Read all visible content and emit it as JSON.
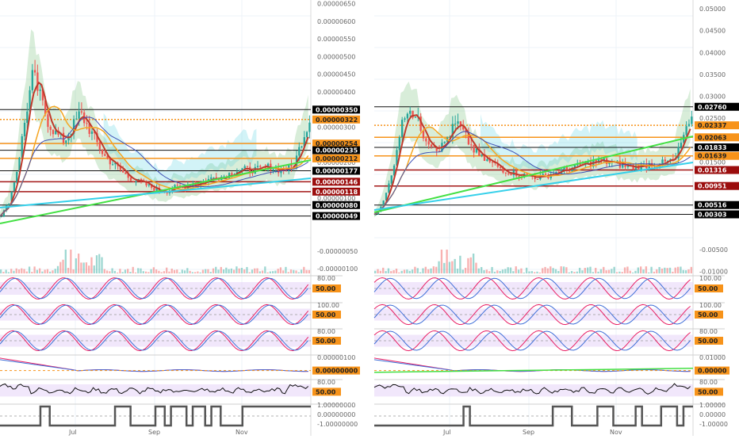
{
  "colors": {
    "background": "#ffffff",
    "grid": "#eef3f8",
    "price_up": "#26a69a",
    "price_down": "#ef5350",
    "ema_fast": "#c0392b",
    "ema_mid": "#f5a623",
    "ema_slow": "#3f51b5",
    "cloud": "#4caf50",
    "cyan_band": "#4dd0e1",
    "green_trend": "#44e044",
    "cyan_trend": "#35d0ea",
    "orange_line": "#f7931a",
    "darkred_line": "#a31515",
    "black_line": "#111111",
    "osc_band": "#e6d4f7",
    "osc_red": "#e91e63",
    "osc_blue": "#3f6fd8",
    "orange_tag": "#f7931a"
  },
  "x_axis": {
    "labels": [
      "Jul",
      "Sep",
      "Nov"
    ]
  },
  "left": {
    "price_axis": {
      "labels": [
        "0.00000650",
        "0.00000600",
        "0.00000550",
        "0.00000500",
        "0.00000450",
        "0.00000400",
        "0.00000300",
        "0.00000250",
        "0.00000200",
        "0.00000150",
        "0.00000100",
        "0.00000050",
        "-0.00000050",
        "-0.00000100"
      ]
    },
    "price_tags": [
      {
        "text": "0.00000350",
        "style": "black"
      },
      {
        "text": "0.00000322",
        "style": "orange"
      },
      {
        "text": "0.00000254",
        "style": "orange"
      },
      {
        "text": "0.00000235",
        "style": "black"
      },
      {
        "text": "0.00000212",
        "style": "orange"
      },
      {
        "text": "0.00000177",
        "style": "black"
      },
      {
        "text": "0.00000146",
        "style": "darkred"
      },
      {
        "text": "0.00000118",
        "style": "darkred"
      },
      {
        "text": "0.00000080",
        "style": "black"
      },
      {
        "text": "0.00000049",
        "style": "black"
      }
    ],
    "stoch1_axis": [
      "80.00"
    ],
    "stoch1_tag": "50.00",
    "stoch2_axis": [
      "100.00",
      "80.00"
    ],
    "stoch2_tag": "50.00",
    "stoch3_axis": [
      "80.00"
    ],
    "stoch3_tag": "50.00",
    "macd_axis": [
      "0.00000100"
    ],
    "macd_tag": "0.00000000",
    "rsi_axis": [
      "80.00"
    ],
    "rsi_tag": "50.00",
    "step_axis": [
      "1.00000000",
      "0.00000000",
      "-1.00000000"
    ]
  },
  "right": {
    "price_axis": {
      "labels": [
        "0.05000",
        "0.04500",
        "0.04000",
        "0.03500",
        "0.03000",
        "0.02500",
        "0.01500",
        "0.00500",
        "-0.00500",
        "-0.01000"
      ]
    },
    "price_tags": [
      {
        "text": "0.02760",
        "style": "black"
      },
      {
        "text": "0.02337",
        "style": "orange"
      },
      {
        "text": "0.02063",
        "style": "orange"
      },
      {
        "text": "0.01833",
        "style": "black"
      },
      {
        "text": "0.01639",
        "style": "orange"
      },
      {
        "text": "0.01316",
        "style": "darkred"
      },
      {
        "text": "0.00951",
        "style": "darkred"
      },
      {
        "text": "0.00516",
        "style": "black"
      },
      {
        "text": "0.00303",
        "style": "black"
      }
    ],
    "stoch1_axis": [
      "100.00"
    ],
    "stoch1_tag": "50.00",
    "stoch2_axis": [
      "100.00",
      "80.00"
    ],
    "stoch2_tag": "50.00",
    "stoch3_axis": [
      "80.00"
    ],
    "stoch3_tag": "50.00",
    "macd_axis": [
      "0.01000"
    ],
    "macd_tag": "0.00000",
    "rsi_axis": [
      "80.00"
    ],
    "rsi_tag": "50.00",
    "step_axis": [
      "1.00000",
      "0.00000",
      "-1.00000"
    ]
  },
  "chart_data": [
    {
      "type": "candlestick",
      "panel": "left",
      "title": "",
      "x_ticks": [
        "Jul",
        "Sep",
        "Nov"
      ],
      "ylim": [
        -1.2e-06,
        6.6e-06
      ],
      "approx_closes": [
        5e-07,
        9e-07,
        1.8e-06,
        3.2e-06,
        4.5e-06,
        3.8e-06,
        3.1e-06,
        2.8e-06,
        2.6e-06,
        3e-06,
        3.4e-06,
        3e-06,
        2.6e-06,
        2.2e-06,
        2e-06,
        1.8e-06,
        1.6e-06,
        1.5e-06,
        1.4e-06,
        1.3e-06,
        1.2e-06,
        1.2e-06,
        1.3e-06,
        1.3e-06,
        1.4e-06,
        1.4e-06,
        1.5e-06,
        1.6e-06,
        1.6e-06,
        1.7e-06,
        1.8e-06,
        1.8e-06,
        1.8e-06,
        1.8e-06,
        1.9e-06,
        1.8e-06,
        1.8e-06,
        1.9e-06,
        2.6e-06,
        3.2e-06
      ],
      "levels": [
        3.5e-06,
        3.22e-06,
        2.54e-06,
        2.35e-06,
        2.12e-06,
        1.77e-06,
        1.46e-06,
        1.18e-06,
        8e-07,
        4.9e-07
      ]
    },
    {
      "type": "candlestick",
      "panel": "right",
      "title": "",
      "x_ticks": [
        "Jul",
        "Sep",
        "Nov"
      ],
      "ylim": [
        -0.011,
        0.052
      ],
      "approx_closes": [
        0.003,
        0.006,
        0.012,
        0.022,
        0.028,
        0.025,
        0.021,
        0.019,
        0.018,
        0.021,
        0.024,
        0.021,
        0.018,
        0.016,
        0.015,
        0.014,
        0.013,
        0.0125,
        0.012,
        0.0118,
        0.0115,
        0.0118,
        0.0125,
        0.013,
        0.0135,
        0.014,
        0.0145,
        0.015,
        0.0152,
        0.0148,
        0.0145,
        0.014,
        0.0138,
        0.0142,
        0.0146,
        0.0145,
        0.015,
        0.0155,
        0.021,
        0.024
      ],
      "levels": [
        0.0276,
        0.02337,
        0.02063,
        0.01833,
        0.01639,
        0.01316,
        0.00951,
        0.00516,
        0.00303
      ]
    }
  ]
}
